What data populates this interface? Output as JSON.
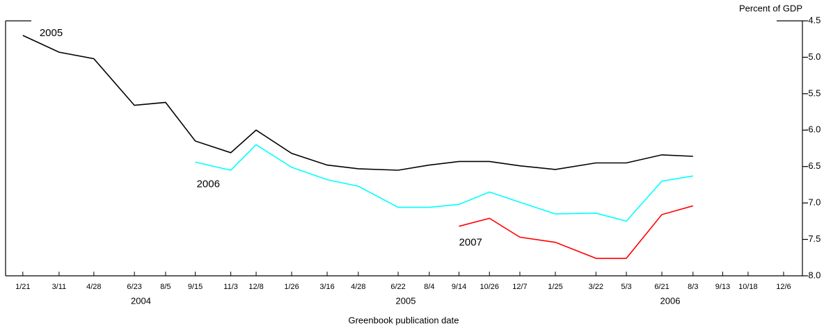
{
  "chart_data": {
    "type": "line",
    "y_label": "Percent of GDP",
    "x_label": "Greenbook publication date",
    "categories": [
      "1/21",
      "3/11",
      "4/28",
      "6/23",
      "8/5",
      "9/15",
      "11/3",
      "12/8",
      "1/26",
      "3/16",
      "4/28",
      "6/22",
      "8/4",
      "9/14",
      "10/26",
      "12/7",
      "1/25",
      "3/22",
      "5/3",
      "6/21",
      "8/3",
      "9/13",
      "10/18",
      "12/6"
    ],
    "years": [
      "2004",
      "2005",
      "2006"
    ],
    "series": [
      {
        "name": "2005",
        "color": "#000000",
        "values": [
          -4.7,
          -4.93,
          -5.02,
          -5.66,
          -5.62,
          -6.15,
          -6.31,
          -6.0,
          -6.32,
          -6.48,
          -6.53,
          -6.55,
          -6.48,
          -6.43,
          -6.43,
          -6.49,
          -6.54,
          -6.45,
          -6.45,
          -6.34,
          -6.36,
          null,
          null,
          null
        ]
      },
      {
        "name": "2006",
        "color": "#00ffff",
        "values": [
          null,
          null,
          null,
          null,
          null,
          -6.44,
          -6.55,
          -6.2,
          -6.51,
          -6.68,
          -6.77,
          -7.06,
          -7.06,
          -7.02,
          -6.85,
          -6.99,
          -7.15,
          -7.14,
          -7.25,
          -6.7,
          -6.63,
          null,
          null,
          null
        ]
      },
      {
        "name": "2007",
        "color": "#ff0000",
        "values": [
          null,
          null,
          null,
          null,
          null,
          null,
          null,
          null,
          null,
          null,
          null,
          null,
          null,
          -7.32,
          -7.21,
          -7.47,
          -7.54,
          -7.76,
          -7.76,
          -7.16,
          -7.04,
          null,
          null,
          null
        ]
      }
    ],
    "ylim": [
      -8.0,
      -4.5
    ],
    "yticks": [
      -4.5,
      {
        "value": -5,
        "label": "-5.0"
      },
      -5.5,
      {
        "value": -6,
        "label": "-6.0"
      },
      -6.5,
      {
        "value": -7,
        "label": "-7.0"
      },
      -7.5,
      {
        "value": -8,
        "label": "-8.0"
      }
    ]
  }
}
